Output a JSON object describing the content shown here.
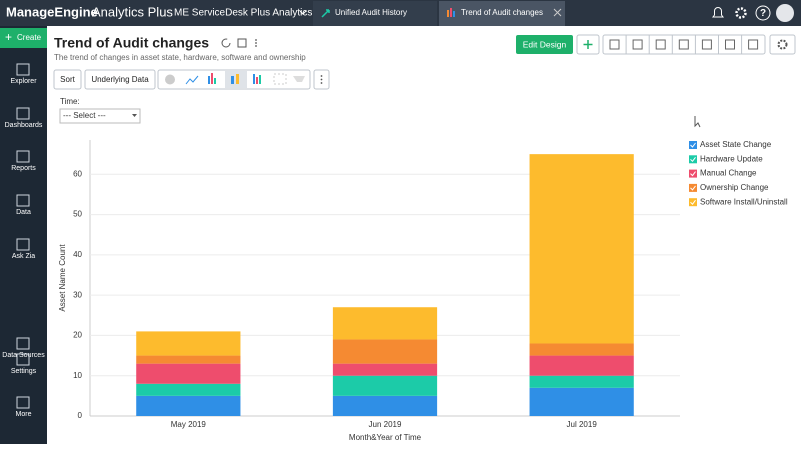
{
  "header": {
    "brand": "ManageEngine",
    "product": "Analytics Plus",
    "workspace": "ME ServiceDesk Plus Analytics",
    "tabs": [
      "Unified Audit History",
      "Trend of Audit changes"
    ],
    "help": "?"
  },
  "sidebar": {
    "create": "Create",
    "items": [
      "Explorer",
      "Dashboards",
      "Reports",
      "Data",
      "Ask Zia",
      "Data Sources",
      "Settings",
      "More"
    ]
  },
  "report": {
    "title": "Trend of Audit changes",
    "description": "The trend of changes in asset state, hardware, software and ownership",
    "edit_button": "Edit Design",
    "toolbar": [
      "Sort",
      "Underlying Data"
    ],
    "filter_label": "Time:",
    "filter_value": "--- Select ---"
  },
  "chart_data": {
    "type": "bar",
    "stacked": true,
    "x_label": "Month&Year of Time",
    "y_label": "Asset Name Count",
    "categories": [
      "May 2019",
      "Jun 2019",
      "Jul 2019"
    ],
    "series": [
      {
        "name": "Asset State Change",
        "color": "#2f8fe6",
        "values": [
          5,
          5,
          7
        ]
      },
      {
        "name": "Hardware Update",
        "color": "#1ccba8",
        "values": [
          3,
          5,
          3
        ]
      },
      {
        "name": "Manual Change",
        "color": "#ee4d6d",
        "values": [
          5,
          3,
          5
        ]
      },
      {
        "name": "Ownership Change",
        "color": "#f58a32",
        "values": [
          2,
          6,
          3
        ]
      },
      {
        "name": "Software Install/Uninstall",
        "color": "#fdbb2d",
        "values": [
          6,
          8,
          47
        ]
      }
    ],
    "ylim": [
      0,
      70
    ],
    "yticks": [
      0,
      10,
      20,
      30,
      40,
      50,
      60
    ],
    "grid": true,
    "legend": "right"
  }
}
